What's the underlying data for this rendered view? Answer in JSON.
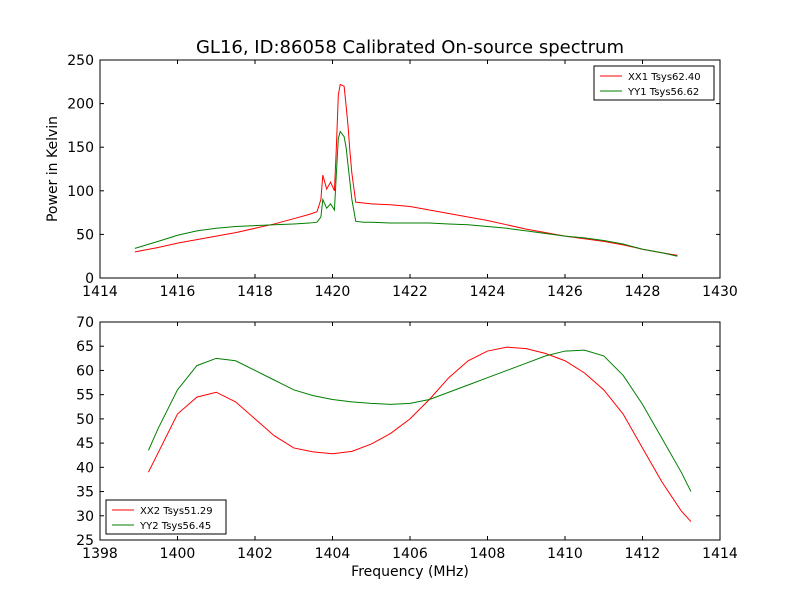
{
  "title": "GL16, ID:86058 Calibrated On-source spectrum",
  "chart_data": [
    {
      "type": "line",
      "title": "GL16, ID:86058 Calibrated On-source spectrum",
      "xlabel": "",
      "ylabel": "Power in Kelvin",
      "xlim": [
        1414,
        1430
      ],
      "ylim": [
        0,
        250
      ],
      "xticks": [
        "1414",
        "1416",
        "1418",
        "1420",
        "1422",
        "1424",
        "1426",
        "1428",
        "1430"
      ],
      "yticks": [
        "0",
        "50",
        "100",
        "150",
        "200",
        "250"
      ],
      "grid": false,
      "legend_position": "top-right",
      "series": [
        {
          "name": "XX1 Tsys62.40",
          "color": "#ff0000",
          "x": [
            1414.9,
            1415.5,
            1416.0,
            1416.5,
            1417.0,
            1417.5,
            1418.0,
            1418.5,
            1419.0,
            1419.4,
            1419.6,
            1419.7,
            1419.75,
            1419.85,
            1419.95,
            1420.05,
            1420.1,
            1420.15,
            1420.2,
            1420.3,
            1420.35,
            1420.4,
            1420.45,
            1420.5,
            1420.6,
            1420.8,
            1421.0,
            1421.5,
            1422.0,
            1422.5,
            1423.0,
            1423.5,
            1424.0,
            1424.5,
            1425.0,
            1425.5,
            1426.0,
            1426.5,
            1427.0,
            1427.5,
            1428.0,
            1428.5,
            1428.9
          ],
          "values": [
            30,
            35,
            40,
            44,
            48,
            52,
            57,
            62,
            68,
            73,
            76,
            90,
            118,
            102,
            110,
            100,
            150,
            210,
            222,
            220,
            198,
            175,
            145,
            120,
            87,
            86,
            85,
            84,
            82,
            78,
            74,
            70,
            66,
            61,
            56,
            52,
            48,
            45,
            42,
            38,
            33,
            29,
            26
          ]
        },
        {
          "name": "YY1 Tsys56.62",
          "color": "#007f00",
          "x": [
            1414.9,
            1415.5,
            1416.0,
            1416.5,
            1417.0,
            1417.5,
            1418.0,
            1418.5,
            1419.0,
            1419.4,
            1419.6,
            1419.7,
            1419.75,
            1419.85,
            1419.95,
            1420.05,
            1420.1,
            1420.15,
            1420.2,
            1420.3,
            1420.35,
            1420.4,
            1420.45,
            1420.5,
            1420.6,
            1420.8,
            1421.0,
            1421.5,
            1422.0,
            1422.5,
            1423.0,
            1423.5,
            1424.0,
            1424.5,
            1425.0,
            1425.5,
            1426.0,
            1426.5,
            1427.0,
            1427.5,
            1428.0,
            1428.5,
            1428.9
          ],
          "values": [
            34,
            42,
            49,
            54,
            57,
            59,
            60,
            61,
            62,
            63,
            64,
            70,
            90,
            80,
            85,
            78,
            120,
            160,
            168,
            162,
            150,
            130,
            110,
            90,
            65,
            64,
            64,
            63,
            63,
            63,
            62,
            61,
            59,
            57,
            54,
            51,
            48,
            46,
            43,
            39,
            33,
            29,
            25
          ]
        }
      ]
    },
    {
      "type": "line",
      "title": "",
      "xlabel": "Frequency (MHz)",
      "ylabel": "",
      "xlim": [
        1398,
        1414
      ],
      "ylim": [
        25,
        70
      ],
      "xticks": [
        "1398",
        "1400",
        "1402",
        "1404",
        "1406",
        "1408",
        "1410",
        "1412",
        "1414"
      ],
      "yticks": [
        "25",
        "30",
        "35",
        "40",
        "45",
        "50",
        "55",
        "60",
        "65",
        "70"
      ],
      "grid": false,
      "legend_position": "bottom-left",
      "series": [
        {
          "name": "XX2 Tsys51.29",
          "color": "#ff0000",
          "x": [
            1399.25,
            1399.5,
            1400.0,
            1400.5,
            1401.0,
            1401.5,
            1402.0,
            1402.5,
            1403.0,
            1403.5,
            1404.0,
            1404.5,
            1405.0,
            1405.5,
            1406.0,
            1406.5,
            1407.0,
            1407.5,
            1408.0,
            1408.5,
            1409.0,
            1409.5,
            1410.0,
            1410.5,
            1411.0,
            1411.5,
            1412.0,
            1412.5,
            1413.0,
            1413.25
          ],
          "values": [
            39,
            43,
            51,
            54.5,
            55.5,
            53.5,
            50,
            46.5,
            44,
            43.2,
            42.8,
            43.3,
            44.8,
            47,
            50,
            54,
            58.5,
            62,
            64,
            64.8,
            64.5,
            63.5,
            62,
            59.5,
            56,
            51,
            44,
            37,
            31,
            28.8
          ]
        },
        {
          "name": "YY2 Tsys56.45",
          "color": "#007f00",
          "x": [
            1399.25,
            1399.5,
            1400.0,
            1400.5,
            1401.0,
            1401.5,
            1402.0,
            1402.5,
            1403.0,
            1403.5,
            1404.0,
            1404.5,
            1405.0,
            1405.5,
            1406.0,
            1406.5,
            1407.0,
            1407.5,
            1408.0,
            1408.5,
            1409.0,
            1409.5,
            1410.0,
            1410.5,
            1411.0,
            1411.5,
            1412.0,
            1412.5,
            1413.0,
            1413.25
          ],
          "values": [
            43.5,
            48,
            56,
            61,
            62.5,
            62,
            60,
            58,
            56,
            54.8,
            54,
            53.5,
            53.2,
            53,
            53.2,
            54,
            55.5,
            57,
            58.5,
            60,
            61.5,
            63,
            64,
            64.2,
            63,
            59,
            53,
            46,
            39,
            35
          ]
        }
      ]
    }
  ]
}
